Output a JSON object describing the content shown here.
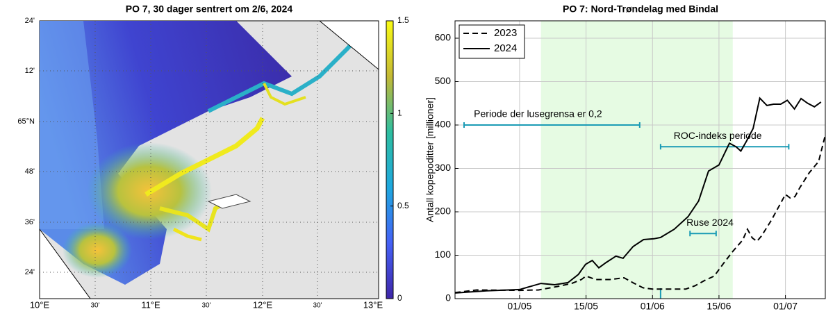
{
  "chart_data": [
    {
      "type": "map",
      "title": "PO 7, 30 dager sentrert om 2/6, 2024",
      "clim": [
        0,
        1.5
      ],
      "colorbar_ticks": [
        0,
        0.5,
        1,
        1.5
      ],
      "lat_labels": [
        "24'",
        "12'",
        "65°N",
        "48'",
        "36'",
        "24'"
      ],
      "lon_labels": [
        "10°E",
        "30'",
        "11°E",
        "30'",
        "12°E",
        "30'",
        "13°E"
      ]
    },
    {
      "type": "line",
      "title": "PO 7: Nord-Trøndelag med Bindal",
      "ylabel": "Antall kopepoditter [millioner]",
      "xlim": [
        -13.6,
        64.4
      ],
      "xticks": [
        {
          "value": 0,
          "label": "01/05"
        },
        {
          "value": 14,
          "label": "15/05"
        },
        {
          "value": 28,
          "label": "01/06"
        },
        {
          "value": 42,
          "label": "15/06"
        },
        {
          "value": 56,
          "label": "01/07"
        }
      ],
      "ylim": [
        0,
        640
      ],
      "yticks": [
        0,
        100,
        200,
        300,
        400,
        500,
        600
      ],
      "grid": true,
      "legend": "upper-left",
      "shade": {
        "x": [
          4.5,
          44.9
        ],
        "color": "#e6fbe3"
      },
      "series": [
        {
          "name": "2023",
          "color": "#000000",
          "dash": true,
          "x": [
            -13.6,
            -9,
            0,
            4,
            8,
            11,
            13,
            14,
            16,
            19,
            22,
            24,
            26,
            28,
            32,
            35,
            37,
            39,
            41,
            43,
            45,
            47,
            48,
            49,
            50,
            51,
            53,
            55,
            56,
            57,
            58,
            59,
            61,
            63,
            64.4
          ],
          "values": [
            14,
            20,
            19,
            20,
            28,
            35,
            44,
            52,
            44,
            44,
            48,
            36,
            25,
            22,
            22,
            22,
            30,
            42,
            52,
            82,
            110,
            135,
            160,
            140,
            132,
            145,
            180,
            220,
            240,
            232,
            235,
            255,
            290,
            316,
            377
          ]
        },
        {
          "name": "2024",
          "color": "#000000",
          "dash": false,
          "x": [
            -13.6,
            -7,
            0,
            4.5,
            7.4,
            10.2,
            12.4,
            13.9,
            15.3,
            16.7,
            18.2,
            20.3,
            21.8,
            23.9,
            26.1,
            28.3,
            29.7,
            32.6,
            35.5,
            37.7,
            39.8,
            42,
            44.2,
            45.6,
            46.6,
            47.8,
            49.2,
            50.6,
            52.1,
            53.5,
            55,
            56.4,
            57.9,
            59.3,
            60.7,
            62.1,
            63.5
          ],
          "values": [
            13,
            18,
            21,
            35,
            32,
            37,
            56,
            79,
            88,
            71,
            83,
            98,
            93,
            120,
            136,
            138,
            141,
            160,
            189,
            225,
            294,
            308,
            358,
            350,
            340,
            363,
            392,
            462,
            445,
            448,
            448,
            457,
            437,
            461,
            450,
            442,
            453
          ]
        }
      ],
      "annotations": [
        {
          "text": "Periode der lusegrensa er 0,2",
          "x": [
            -11.7,
            25.3
          ],
          "y": 400,
          "color": "#1a9bb5"
        },
        {
          "text": "ROC-indeks periode",
          "x": [
            29.7,
            56.7
          ],
          "y": 350,
          "color": "#1a9bb5"
        },
        {
          "text": "Ruse 2024",
          "x": [
            35.9,
            41.4
          ],
          "y": 150,
          "color": "#1a9bb5"
        }
      ],
      "marker": {
        "x": 29.7,
        "y": [
          0,
          24
        ],
        "color": "#1a9bb5"
      }
    }
  ]
}
